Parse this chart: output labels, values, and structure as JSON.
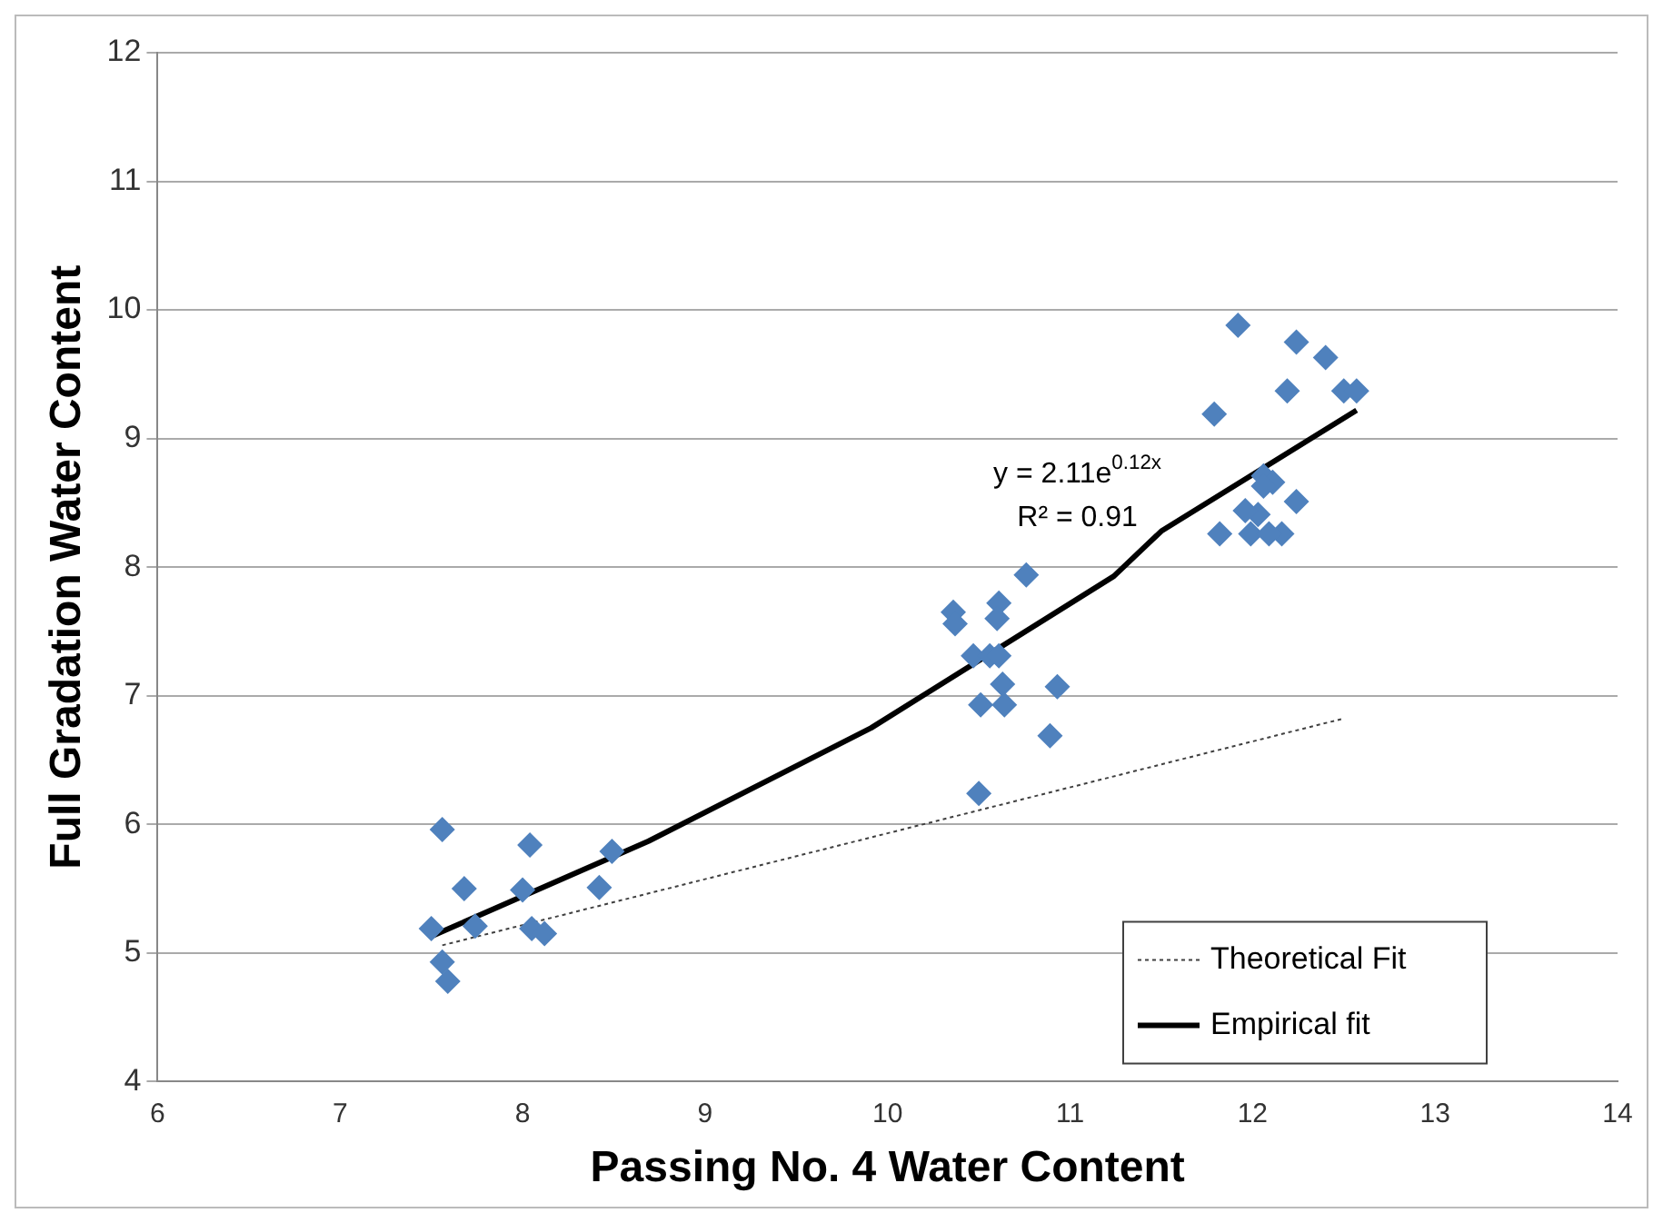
{
  "chart_data": {
    "type": "scatter",
    "xlabel": "Passing No. 4 Water Content",
    "ylabel": "Full Gradation Water Content",
    "xlim": [
      6,
      14
    ],
    "xticks": [
      6,
      7,
      8,
      9,
      10,
      11,
      12,
      13,
      14
    ],
    "ylim": [
      4,
      12
    ],
    "yticks": [
      4,
      5,
      6,
      7,
      8,
      9,
      10,
      11,
      12
    ],
    "grid": "y",
    "legend": "bottom right",
    "annotations": [
      "y = 2.11e$^{0.12x}$",
      "R² = 0.91"
    ],
    "series": [
      {
        "type": "scatter",
        "color": "#4f81bd",
        "marker": "diamond",
        "x": [
          7.5,
          7.56,
          7.56,
          7.59,
          7.68,
          7.74,
          8.0,
          8.04,
          8.05,
          8.12,
          8.42,
          8.49,
          10.36,
          10.37,
          10.61,
          10.6,
          10.76,
          10.47,
          10.56,
          10.61,
          10.63,
          10.93,
          10.51,
          10.64,
          10.89,
          10.5,
          11.92,
          12.24,
          12.4,
          12.19,
          11.79,
          12.5,
          12.57,
          12.06,
          12.11,
          12.24,
          11.82,
          12.03,
          11.99,
          12.16,
          12.09,
          12.06,
          11.96
        ],
        "values": [
          5.19,
          5.96,
          4.93,
          4.78,
          5.5,
          5.21,
          5.49,
          5.84,
          5.19,
          5.15,
          5.51,
          5.79,
          7.65,
          7.56,
          7.72,
          7.6,
          7.94,
          7.31,
          7.31,
          7.31,
          7.09,
          7.07,
          6.93,
          6.93,
          6.69,
          6.24,
          9.88,
          9.75,
          9.63,
          9.37,
          9.19,
          9.37,
          9.37,
          8.71,
          8.66,
          8.51,
          8.26,
          8.41,
          8.26,
          8.26,
          8.26,
          8.63,
          8.44
        ]
      },
      {
        "type": "line",
        "name": "Theoretical Fit",
        "color": "#404040",
        "line_style": "dotted",
        "marker": "none",
        "x": [
          7.56,
          12.49
        ],
        "values": [
          5.06,
          6.82
        ]
      },
      {
        "type": "line",
        "name": "Empirical fit",
        "color": "#000000",
        "line_style": "solid",
        "marker": "none",
        "x": [
          7.5,
          8.69,
          9.91,
          11.24,
          11.5,
          12.57
        ],
        "values": [
          5.13,
          5.87,
          6.75,
          7.93,
          8.28,
          9.22
        ]
      }
    ]
  }
}
